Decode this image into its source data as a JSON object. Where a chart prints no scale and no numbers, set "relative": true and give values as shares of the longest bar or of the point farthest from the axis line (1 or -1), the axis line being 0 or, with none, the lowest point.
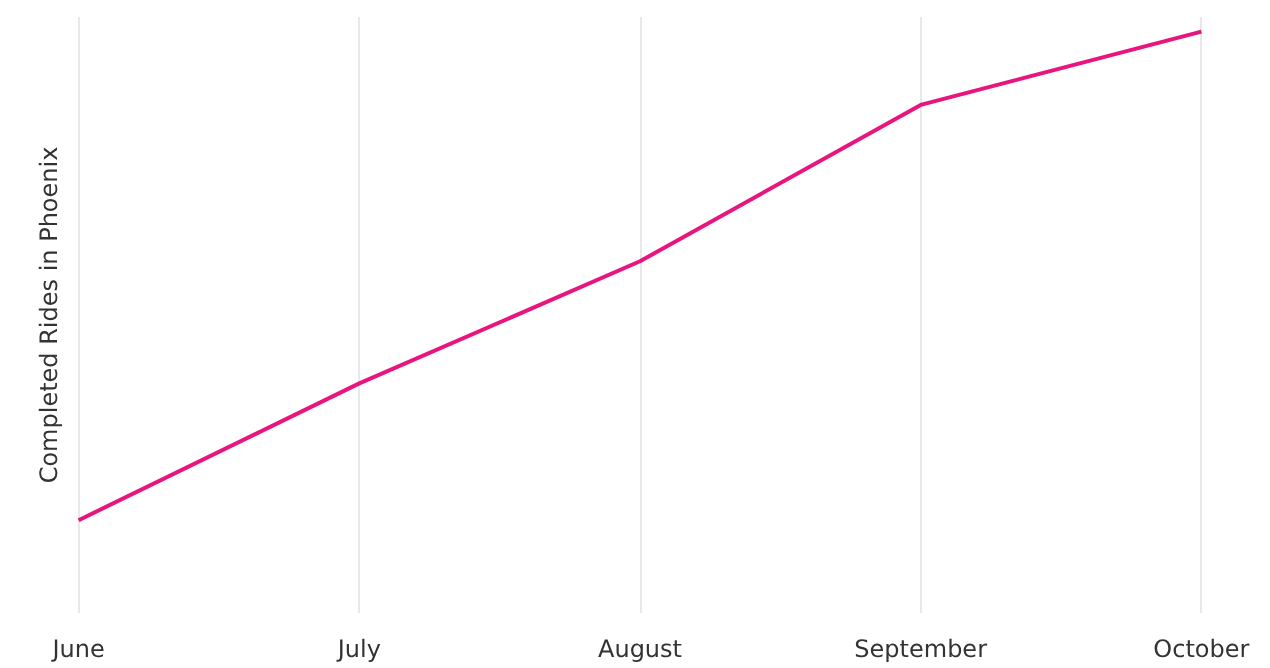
{
  "chart_data": {
    "type": "line",
    "ylabel": "Completed Rides in Phoenix",
    "categories": [
      "June",
      "July",
      "August",
      "September",
      "October"
    ],
    "series": [
      {
        "color": "#e8157f",
        "values": [
          0,
          0.28,
          0.53,
          0.85,
          1
        ]
      }
    ],
    "relative": true,
    "grid": "x",
    "marker": "none",
    "line_style": "solid"
  }
}
